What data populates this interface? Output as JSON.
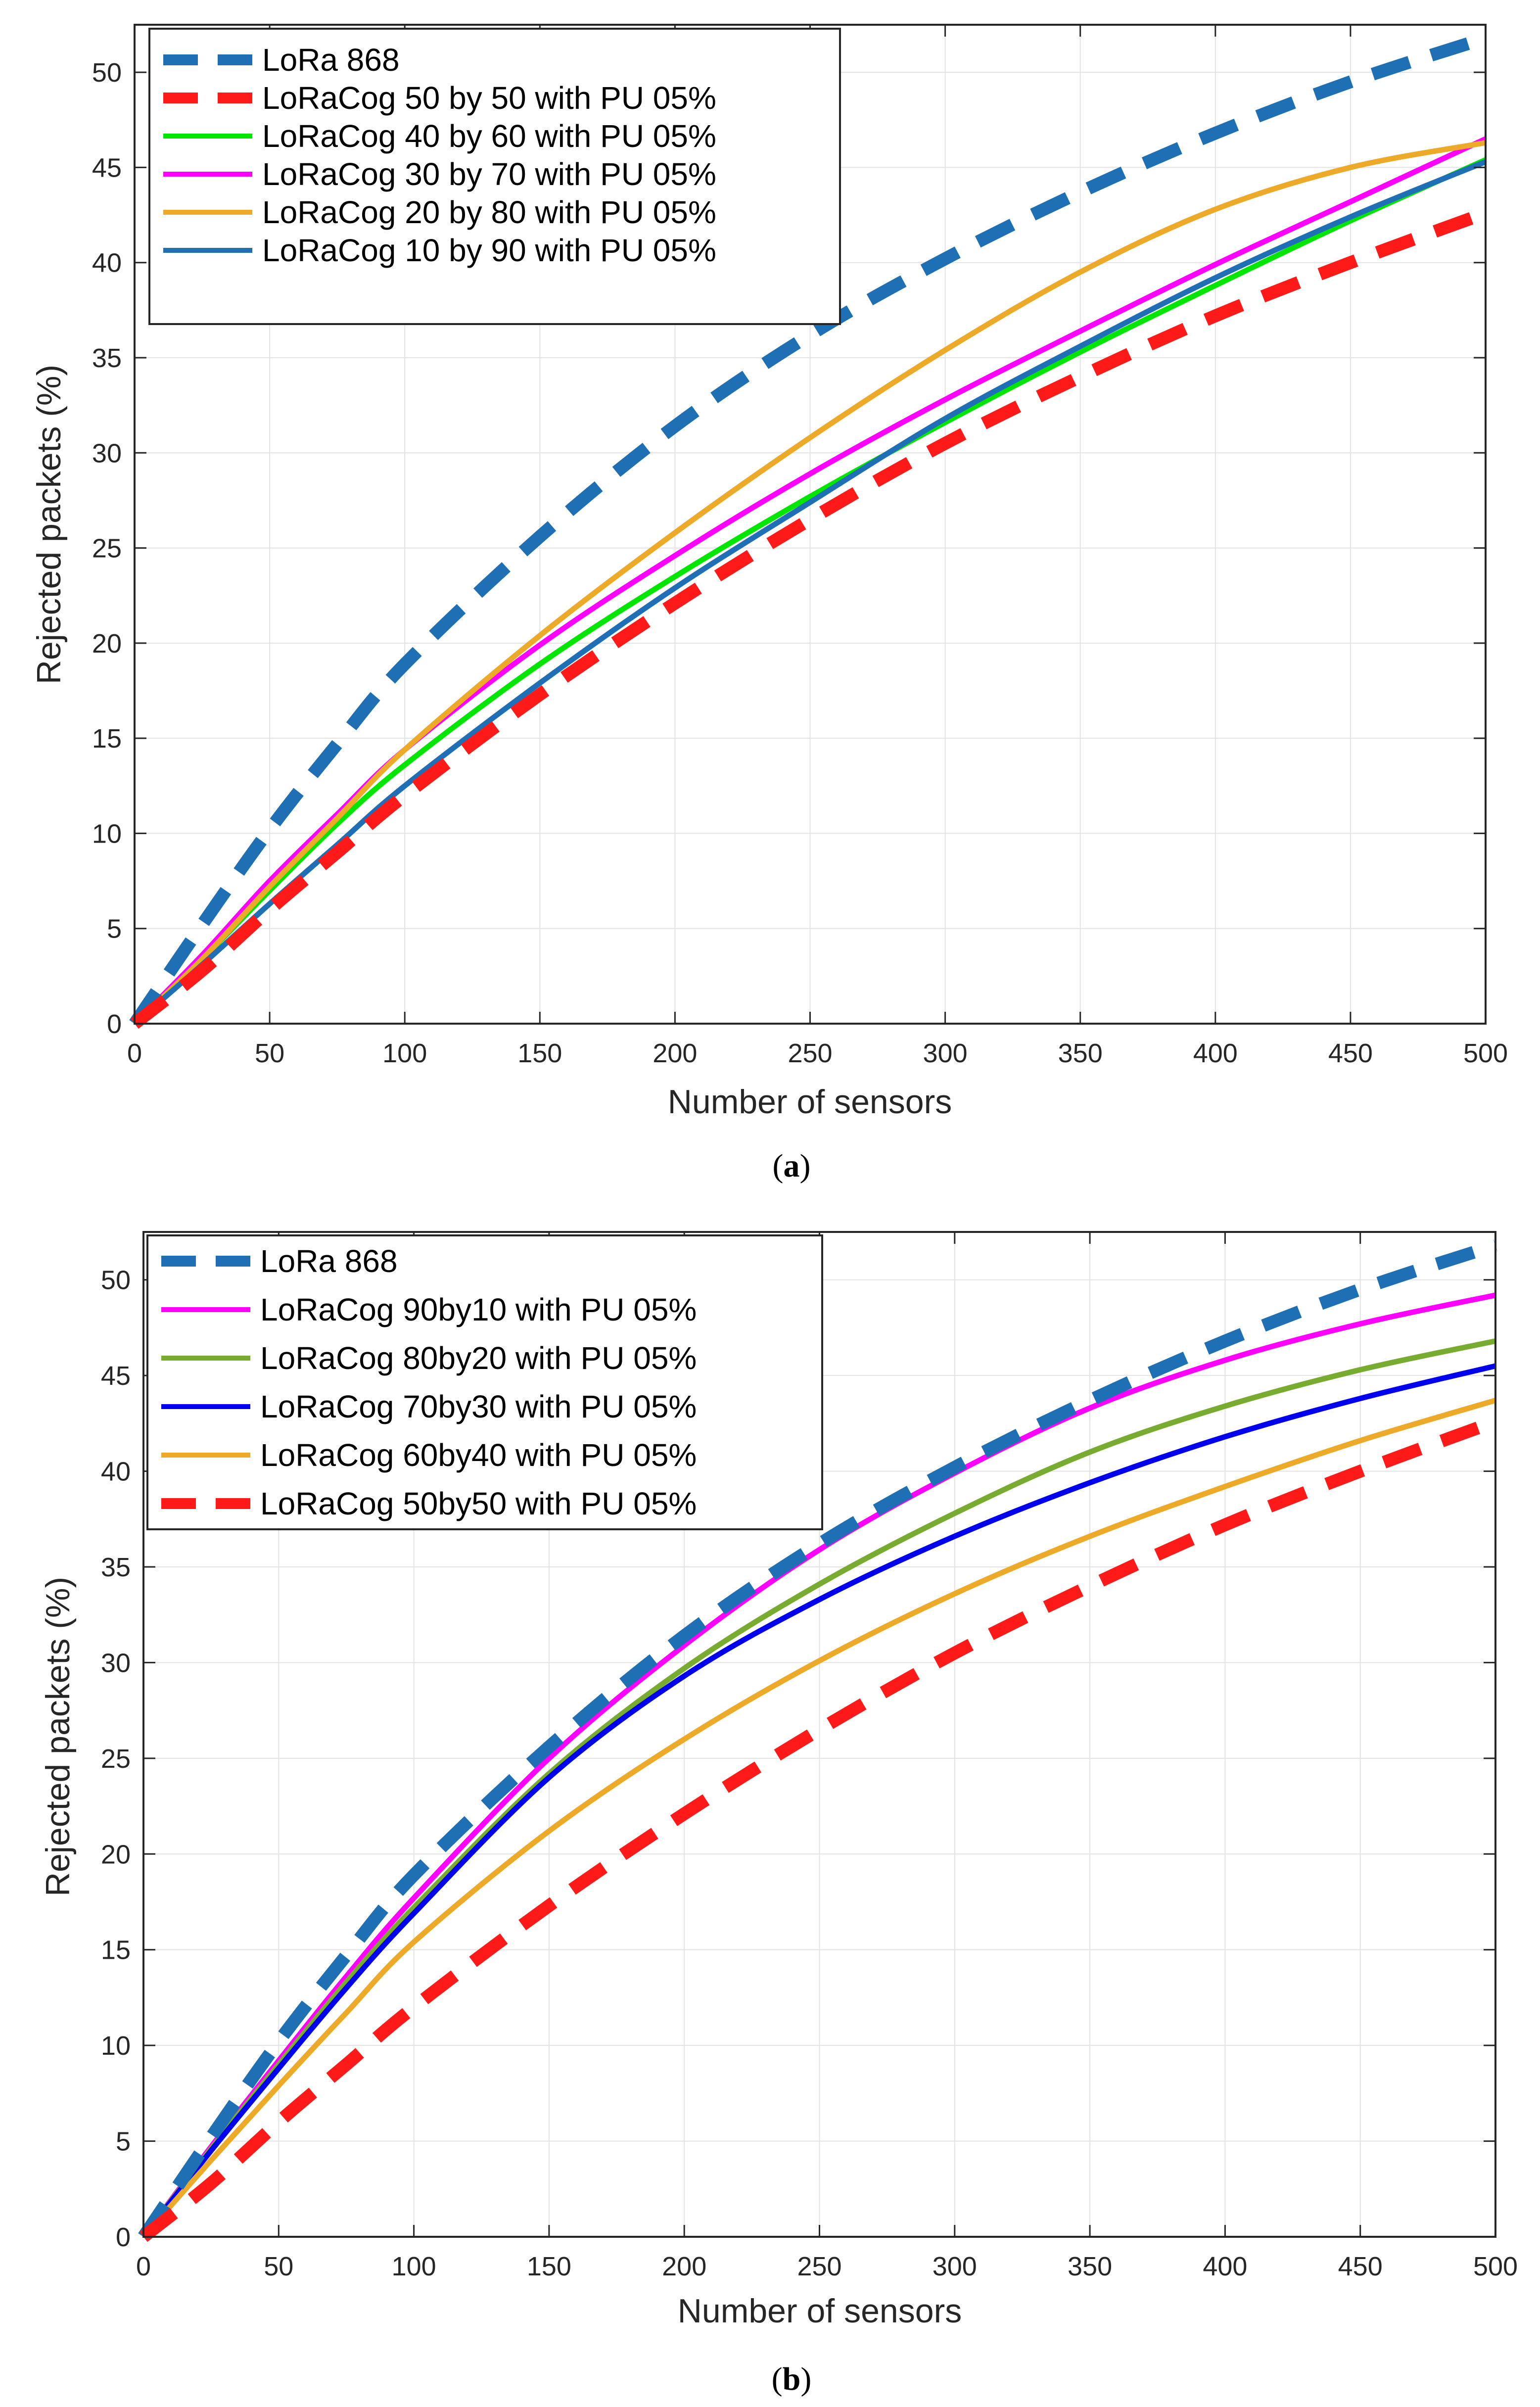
{
  "chart_data": [
    {
      "type": "line",
      "caption": "(a)",
      "caption_letter": "a",
      "xlabel": "Number of sensors",
      "ylabel": "Rejected packets (%)",
      "xlim": [
        0,
        500
      ],
      "ylim": [
        0,
        52.5
      ],
      "xticks": [
        0,
        50,
        100,
        150,
        200,
        250,
        300,
        350,
        400,
        450,
        500
      ],
      "yticks": [
        0,
        5,
        10,
        15,
        20,
        25,
        30,
        35,
        40,
        45,
        50
      ],
      "grid": true,
      "legend_position": "top-left",
      "x": [
        0,
        25,
        50,
        75,
        100,
        150,
        200,
        250,
        300,
        350,
        400,
        450,
        500
      ],
      "series": [
        {
          "name": "LoRa 868",
          "color": "#1f6fb4",
          "style": "dashed",
          "values": [
            0,
            5.2,
            10.2,
            14.7,
            18.9,
            25.6,
            31.4,
            36.2,
            40.2,
            43.7,
            46.8,
            49.5,
            51.8
          ]
        },
        {
          "name": "LoRaCog 50 by 50 with PU 05%",
          "color": "#ff1a1a",
          "style": "dashed",
          "values": [
            0,
            2.8,
            6.0,
            9.0,
            12.0,
            17.3,
            22.1,
            26.5,
            30.5,
            34.0,
            37.2,
            40.0,
            42.6
          ]
        },
        {
          "name": "LoRaCog 40 by 60 with PU 05%",
          "color": "#00e600",
          "style": "solid",
          "values": [
            0,
            3.4,
            7.0,
            10.5,
            13.6,
            18.9,
            23.5,
            27.7,
            31.6,
            35.3,
            38.8,
            42.2,
            45.4
          ]
        },
        {
          "name": "LoRaCog 30 by 70 with PU 05%",
          "color": "#ff00ff",
          "style": "solid",
          "values": [
            0,
            3.6,
            7.5,
            11.0,
            14.4,
            19.9,
            24.6,
            28.9,
            32.8,
            36.4,
            39.9,
            43.2,
            46.5
          ]
        },
        {
          "name": "LoRaCog 20 by 80 with PU 05%",
          "color": "#eda928",
          "style": "solid",
          "values": [
            0,
            3.4,
            7.2,
            10.8,
            14.4,
            20.4,
            25.8,
            30.8,
            35.4,
            39.5,
            42.8,
            45.0,
            46.3
          ]
        },
        {
          "name": "LoRaCog 10 by 90 with PU 05%",
          "color": "#1e6fb6",
          "style": "solid",
          "values": [
            0,
            3.1,
            6.3,
            9.4,
            12.5,
            17.9,
            22.9,
            27.4,
            31.8,
            35.6,
            39.2,
            42.4,
            45.3
          ]
        }
      ]
    },
    {
      "type": "line",
      "caption": "(b)",
      "caption_letter": "b",
      "xlabel": "Number of sensors",
      "ylabel": "Rejected packets (%)",
      "xlim": [
        0,
        500
      ],
      "ylim": [
        0,
        52.5
      ],
      "xticks": [
        0,
        50,
        100,
        150,
        200,
        250,
        300,
        350,
        400,
        450,
        500
      ],
      "yticks": [
        0,
        5,
        10,
        15,
        20,
        25,
        30,
        35,
        40,
        45,
        50
      ],
      "grid": true,
      "legend_position": "top-left",
      "x": [
        0,
        25,
        50,
        75,
        100,
        150,
        200,
        250,
        300,
        350,
        400,
        450,
        500
      ],
      "series": [
        {
          "name": "LoRa 868",
          "color": "#1f6fb4",
          "style": "dashed",
          "values": [
            0,
            5.2,
            10.2,
            14.7,
            18.9,
            25.6,
            31.4,
            36.2,
            40.2,
            43.7,
            46.8,
            49.5,
            51.8
          ]
        },
        {
          "name": "LoRaCog 90by10 with PU 05%",
          "color": "#ff00ff",
          "style": "solid",
          "values": [
            0,
            4.7,
            9.2,
            13.6,
            17.7,
            25.0,
            30.9,
            35.9,
            39.9,
            43.3,
            45.8,
            47.7,
            49.2
          ]
        },
        {
          "name": "LoRaCog 80by20 with PU 05%",
          "color": "#77ac30",
          "style": "solid",
          "values": [
            0,
            4.6,
            9.0,
            13.3,
            17.2,
            24.2,
            29.7,
            34.1,
            37.8,
            41.0,
            43.4,
            45.3,
            46.8
          ]
        },
        {
          "name": "LoRaCog 70by30 with PU 05%",
          "color": "#0000ee",
          "style": "solid",
          "values": [
            0,
            4.5,
            8.8,
            13.0,
            16.9,
            24.0,
            29.3,
            33.3,
            36.6,
            39.4,
            41.8,
            43.8,
            45.5
          ]
        },
        {
          "name": "LoRaCog 60by40 with PU 05%",
          "color": "#eda928",
          "style": "solid",
          "values": [
            0,
            4.0,
            7.9,
            11.7,
            15.4,
            21.2,
            26.0,
            30.1,
            33.6,
            36.6,
            39.2,
            41.6,
            43.7
          ]
        },
        {
          "name": "LoRaCog 50by50 with PU 05%",
          "color": "#ff1a1a",
          "style": "dashed",
          "values": [
            0,
            2.8,
            6.0,
            9.0,
            12.0,
            17.3,
            22.1,
            26.5,
            30.5,
            34.0,
            37.2,
            40.0,
            42.6
          ]
        }
      ]
    }
  ]
}
